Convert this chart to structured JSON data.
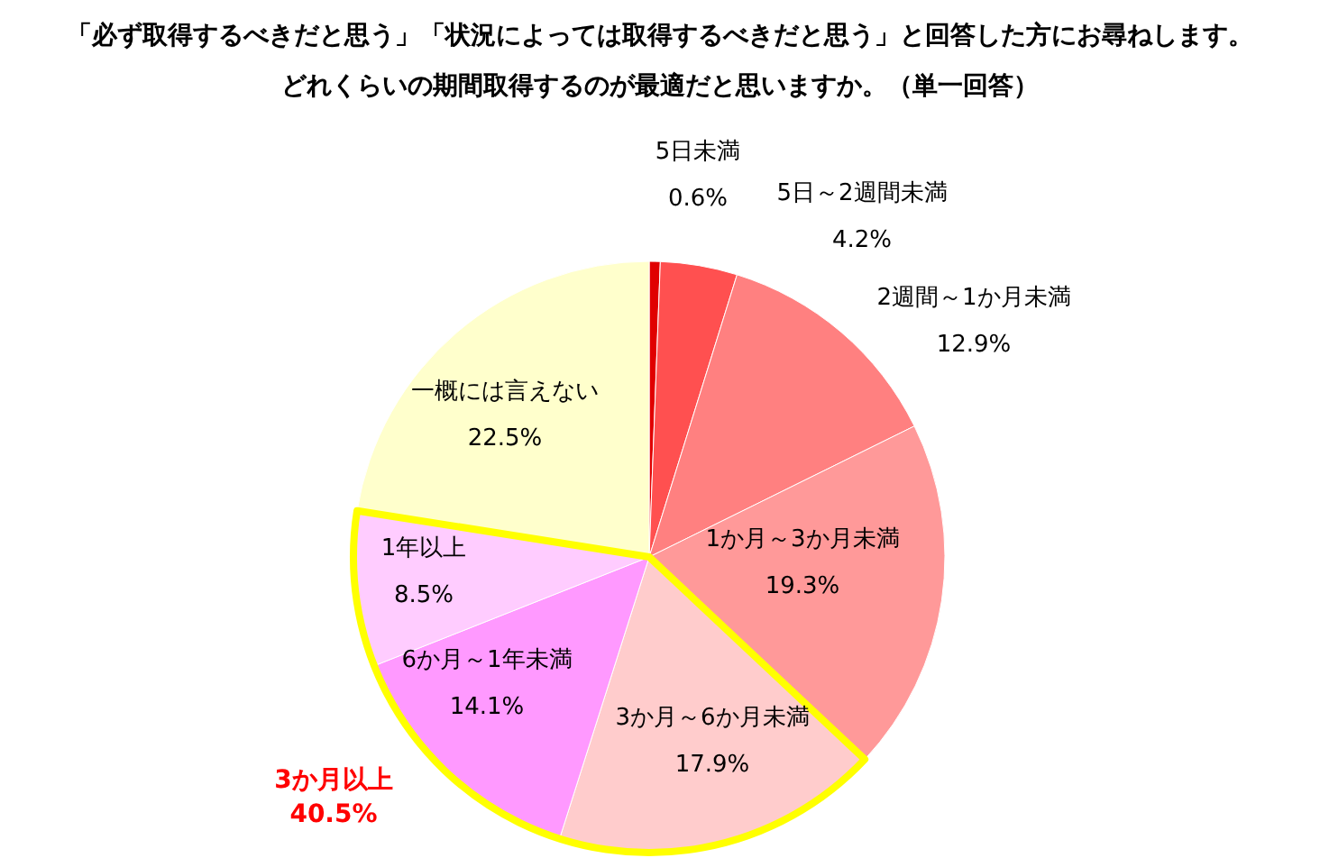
{
  "chart_data": {
    "type": "pie",
    "title": "「必ず取得するべきだと思う」「状況によっては取得するべきだと思う」と回答した方にお尋ねします。",
    "subtitle": "どれくらいの期間取得するのが最適だと思いますか。（単一回答）",
    "categories": [
      "5日未満",
      "5日～2週間未満",
      "2週間～1か月未満",
      "1か月～3か月未満",
      "3か月～6か月未満",
      "6か月～1年未満",
      "1年以上",
      "一概には言えない"
    ],
    "values": [
      0.6,
      4.2,
      12.9,
      19.3,
      17.9,
      14.1,
      8.5,
      22.5
    ],
    "colors": [
      "#e00000",
      "#ff5050",
      "#ff8080",
      "#ff9999",
      "#ffcccc",
      "#ff99ff",
      "#ffccff",
      "#ffffcc"
    ],
    "value_labels": [
      "0.6%",
      "4.2%",
      "12.9%",
      "19.3%",
      "17.9%",
      "14.1%",
      "8.5%",
      "22.5%"
    ],
    "annotations": [
      "3か月以上 40.5%"
    ]
  }
}
